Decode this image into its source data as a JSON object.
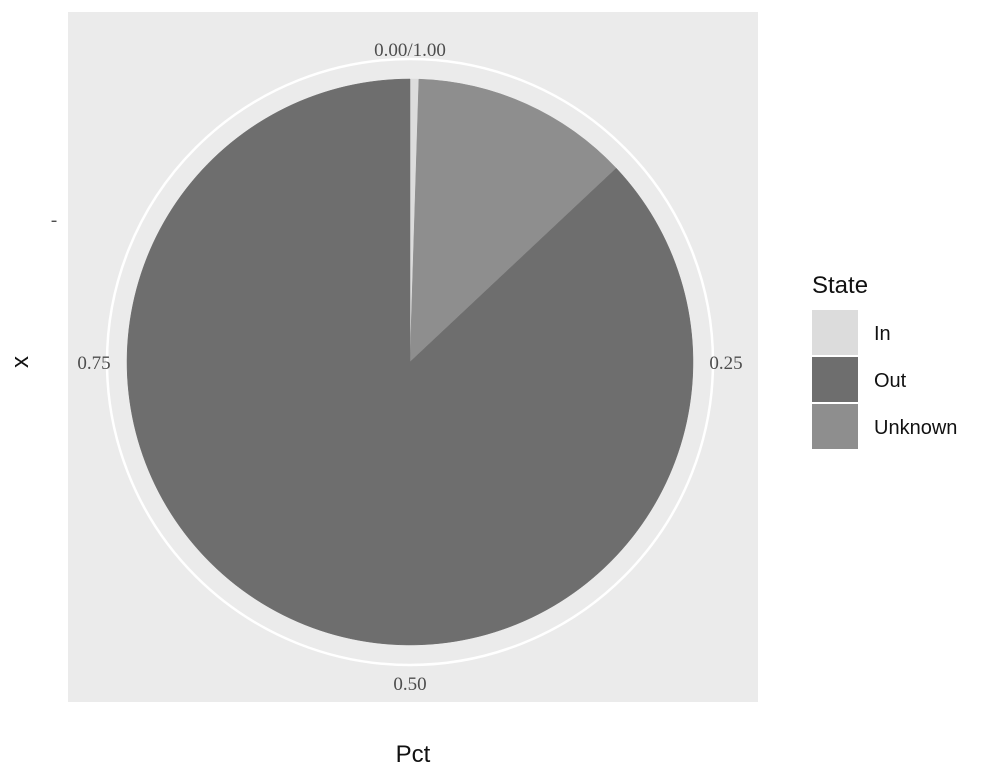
{
  "chart_data": {
    "type": "pie",
    "xlabel": "Pct",
    "ylabel": "x",
    "y_tick": "-",
    "theta_ticks": [
      "0.00/1.00",
      "0.25",
      "0.50",
      "0.75"
    ],
    "legend": {
      "title": "State",
      "placement": "right",
      "entries": [
        "In",
        "Out",
        "Unknown"
      ]
    },
    "slices": [
      {
        "label": "In",
        "value": 0.005,
        "color": "#dcdcdc"
      },
      {
        "label": "Unknown",
        "value": 0.125,
        "color": "#8e8e8e"
      },
      {
        "label": "Out",
        "value": 0.87,
        "color": "#6e6e6e"
      }
    ],
    "panel_background": "#ebebeb",
    "grid": true
  }
}
